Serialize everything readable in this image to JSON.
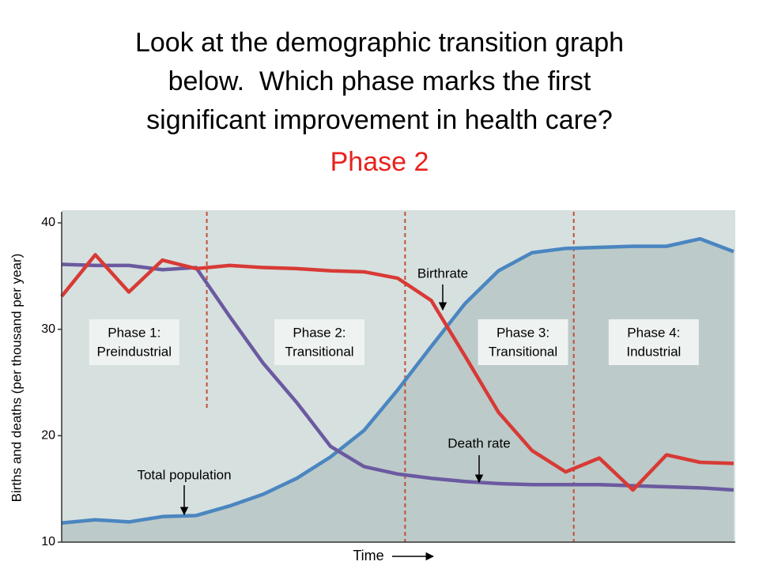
{
  "slide": {
    "question": [
      "Look at the demographic transition graph",
      "below.  Which phase marks the first",
      "significant improvement in health care?"
    ],
    "answer": "Phase 2"
  },
  "chart_data": {
    "type": "line",
    "y_label": "Births and deaths (per thousand per year)",
    "x_label": "Time",
    "xlim": [
      0,
      100
    ],
    "ylim": [
      10,
      40
    ],
    "yticks": [
      10,
      20,
      30,
      40
    ],
    "x": [
      0,
      5,
      10,
      15,
      20,
      25,
      30,
      35,
      40,
      45,
      50,
      55,
      60,
      65,
      70,
      75,
      80,
      85,
      90,
      95,
      100
    ],
    "series": [
      {
        "name": "Birthrate",
        "color": "#d83a35",
        "values": [
          33.1,
          37.0,
          33.5,
          36.5,
          35.7,
          36.0,
          35.8,
          35.7,
          35.5,
          35.4,
          34.8,
          32.7,
          27.5,
          22.2,
          18.6,
          16.6,
          17.9,
          14.9,
          18.2,
          17.5,
          17.4
        ]
      },
      {
        "name": "Death rate",
        "color": "#6b5aa0",
        "values": [
          36.1,
          36.0,
          36.0,
          35.6,
          35.8,
          31.2,
          26.8,
          23.1,
          19.0,
          17.1,
          16.4,
          16.0,
          15.7,
          15.5,
          15.4,
          15.4,
          15.4,
          15.3,
          15.2,
          15.1,
          14.9
        ]
      },
      {
        "name": "Total population",
        "color": "#4a86c0",
        "values": [
          11.8,
          12.1,
          11.9,
          12.4,
          12.5,
          13.4,
          14.5,
          16.0,
          18.0,
          20.5,
          24.3,
          28.4,
          32.4,
          35.5,
          37.2,
          37.6,
          37.7,
          37.8,
          37.8,
          38.5,
          37.3
        ]
      }
    ],
    "phase_boundaries": [
      21.6,
      51.1,
      76.2
    ],
    "phases": [
      {
        "name": "Phase 1:",
        "label": "Preindustrial"
      },
      {
        "name": "Phase 2:",
        "label": "Transitional"
      },
      {
        "name": "Phase 3:",
        "label": "Transitional"
      },
      {
        "name": "Phase 4:",
        "label": "Industrial"
      }
    ]
  }
}
